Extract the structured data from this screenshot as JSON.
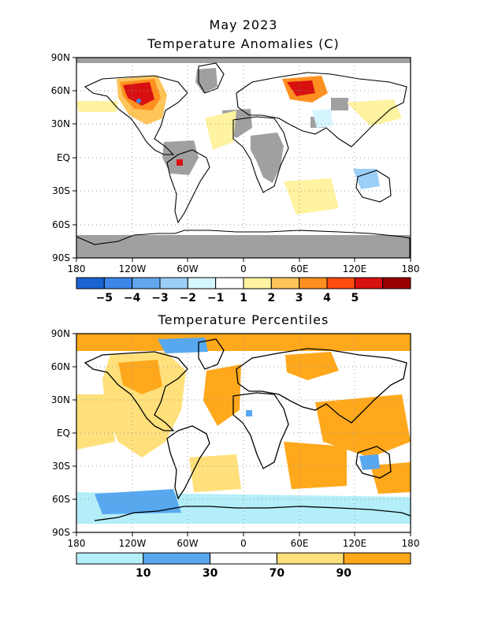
{
  "page": {
    "title_line1": "May 2023",
    "top_title": "Temperature Anomalies (C)",
    "bottom_title": "Temperature Percentiles"
  },
  "maps": {
    "lon_ticks": [
      "180",
      "120W",
      "60W",
      "0",
      "60E",
      "120E",
      "180"
    ],
    "lat_ticks": [
      "90N",
      "60N",
      "30N",
      "EQ",
      "30S",
      "60S",
      "90S"
    ]
  },
  "colors": {
    "land_outline": "#000000",
    "no_data": "#a0a0a0",
    "grid": "#999999"
  },
  "anomaly_colorbar": {
    "colors": [
      "#1a63d2",
      "#3d86e8",
      "#62a6f0",
      "#9ccff8",
      "#d6f6ff",
      "#ffffff",
      "#fff2a0",
      "#ffc55a",
      "#ff8f20",
      "#ff4a10",
      "#d81010",
      "#9a0000"
    ],
    "labels": [
      "−5",
      "−4",
      "−3",
      "−2",
      "−1",
      "1",
      "2",
      "3",
      "4",
      "5"
    ]
  },
  "percentile_colorbar": {
    "colors": [
      "#b4eef8",
      "#58a8f0",
      "#ffffff",
      "#ffe07a",
      "#ffa81c"
    ],
    "labels": [
      "10",
      "30",
      "70",
      "90"
    ]
  }
}
